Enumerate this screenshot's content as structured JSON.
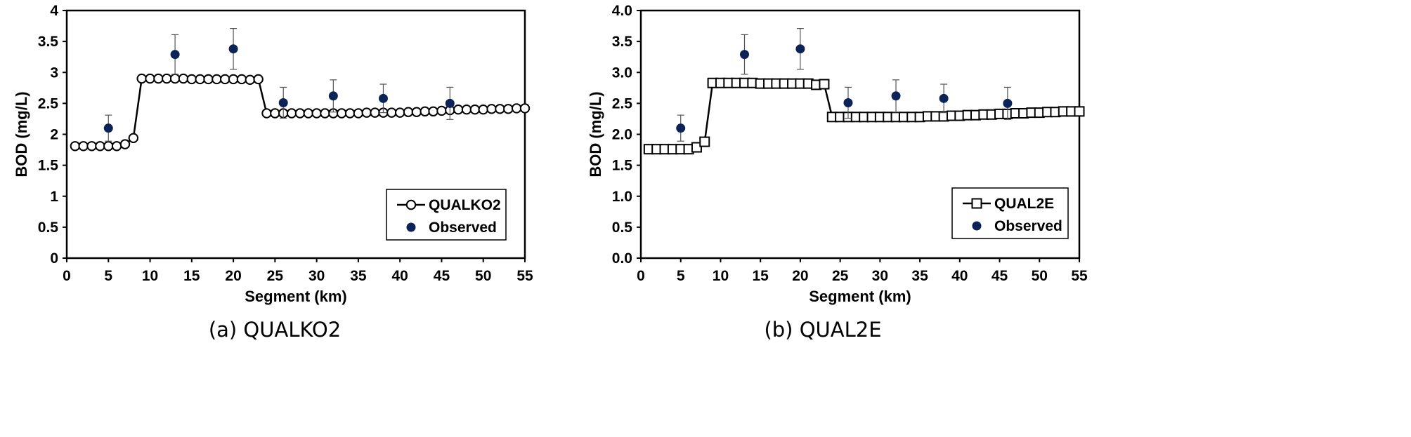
{
  "chart_data": [
    {
      "type": "line",
      "caption": "(a) QUALKO2",
      "xlabel": "Segment (km)",
      "ylabel": "BOD (mg/L)",
      "xlim": [
        0,
        55
      ],
      "ylim": [
        0,
        4
      ],
      "xticks": [
        "0",
        "5",
        "10",
        "15",
        "20",
        "25",
        "30",
        "35",
        "40",
        "45",
        "50",
        "55"
      ],
      "yticks": [
        "0",
        "0.5",
        "1",
        "1.5",
        "2",
        "2.5",
        "3",
        "3.5",
        "4"
      ],
      "grid": false,
      "legend_position": "bottom-right",
      "model_marker": "circle",
      "series": [
        {
          "name": "QUALKO2",
          "x": [
            1,
            2,
            3,
            4,
            5,
            6,
            7,
            8,
            9,
            10,
            11,
            12,
            13,
            14,
            15,
            16,
            17,
            18,
            19,
            20,
            21,
            22,
            23,
            24,
            25,
            26,
            27,
            28,
            29,
            30,
            31,
            32,
            33,
            34,
            35,
            36,
            37,
            38,
            39,
            40,
            41,
            42,
            43,
            44,
            45,
            46,
            47,
            48,
            49,
            50,
            51,
            52,
            53,
            54,
            55
          ],
          "y": [
            1.81,
            1.81,
            1.81,
            1.81,
            1.81,
            1.81,
            1.84,
            1.94,
            2.9,
            2.9,
            2.9,
            2.9,
            2.9,
            2.9,
            2.89,
            2.89,
            2.89,
            2.89,
            2.89,
            2.89,
            2.89,
            2.88,
            2.89,
            2.34,
            2.34,
            2.34,
            2.34,
            2.34,
            2.34,
            2.34,
            2.34,
            2.34,
            2.34,
            2.34,
            2.34,
            2.35,
            2.35,
            2.35,
            2.35,
            2.35,
            2.36,
            2.36,
            2.37,
            2.37,
            2.38,
            2.39,
            2.4,
            2.4,
            2.4,
            2.4,
            2.41,
            2.41,
            2.41,
            2.42,
            2.42
          ]
        },
        {
          "name": "Observed",
          "x": [
            5,
            13,
            20,
            26,
            32,
            38,
            46
          ],
          "y": [
            2.1,
            3.29,
            3.38,
            2.51,
            2.62,
            2.58,
            2.5
          ],
          "err": [
            0.21,
            0.32,
            0.33,
            0.25,
            0.26,
            0.23,
            0.26
          ]
        }
      ]
    },
    {
      "type": "line",
      "caption": "(b) QUAL2E",
      "xlabel": "Segment (km)",
      "ylabel": "BOD (mg/L)",
      "xlim": [
        0,
        55
      ],
      "ylim": [
        0,
        4
      ],
      "xticks": [
        "0",
        "5",
        "10",
        "15",
        "20",
        "25",
        "30",
        "35",
        "40",
        "45",
        "50",
        "55"
      ],
      "yticks": [
        "0.0",
        "0.5",
        "1.0",
        "1.5",
        "2.0",
        "2.5",
        "3.0",
        "3.5",
        "4.0"
      ],
      "grid": false,
      "legend_position": "bottom-right",
      "model_marker": "square",
      "series": [
        {
          "name": "QUAL2E",
          "x": [
            1,
            2,
            3,
            4,
            5,
            6,
            7,
            8,
            9,
            10,
            11,
            12,
            13,
            14,
            15,
            16,
            17,
            18,
            19,
            20,
            21,
            22,
            23,
            24,
            25,
            26,
            27,
            28,
            29,
            30,
            31,
            32,
            33,
            34,
            35,
            36,
            37,
            38,
            39,
            40,
            41,
            42,
            43,
            44,
            45,
            46,
            47,
            48,
            49,
            50,
            51,
            52,
            53,
            54,
            55
          ],
          "y": [
            1.76,
            1.76,
            1.76,
            1.76,
            1.76,
            1.76,
            1.79,
            1.88,
            2.83,
            2.83,
            2.83,
            2.83,
            2.83,
            2.83,
            2.82,
            2.82,
            2.82,
            2.82,
            2.82,
            2.82,
            2.82,
            2.8,
            2.81,
            2.28,
            2.28,
            2.28,
            2.28,
            2.28,
            2.28,
            2.28,
            2.28,
            2.28,
            2.28,
            2.28,
            2.28,
            2.29,
            2.29,
            2.29,
            2.3,
            2.3,
            2.31,
            2.31,
            2.32,
            2.32,
            2.33,
            2.33,
            2.34,
            2.34,
            2.35,
            2.35,
            2.36,
            2.36,
            2.37,
            2.37,
            2.37
          ]
        },
        {
          "name": "Observed",
          "x": [
            5,
            13,
            20,
            26,
            32,
            38,
            46
          ],
          "y": [
            2.1,
            3.29,
            3.38,
            2.51,
            2.62,
            2.58,
            2.5
          ],
          "err": [
            0.21,
            0.32,
            0.33,
            0.25,
            0.26,
            0.23,
            0.26
          ]
        }
      ]
    }
  ],
  "colors": {
    "observed": "#0b2357",
    "line": "#000000",
    "marker_fill": "#ffffff"
  }
}
